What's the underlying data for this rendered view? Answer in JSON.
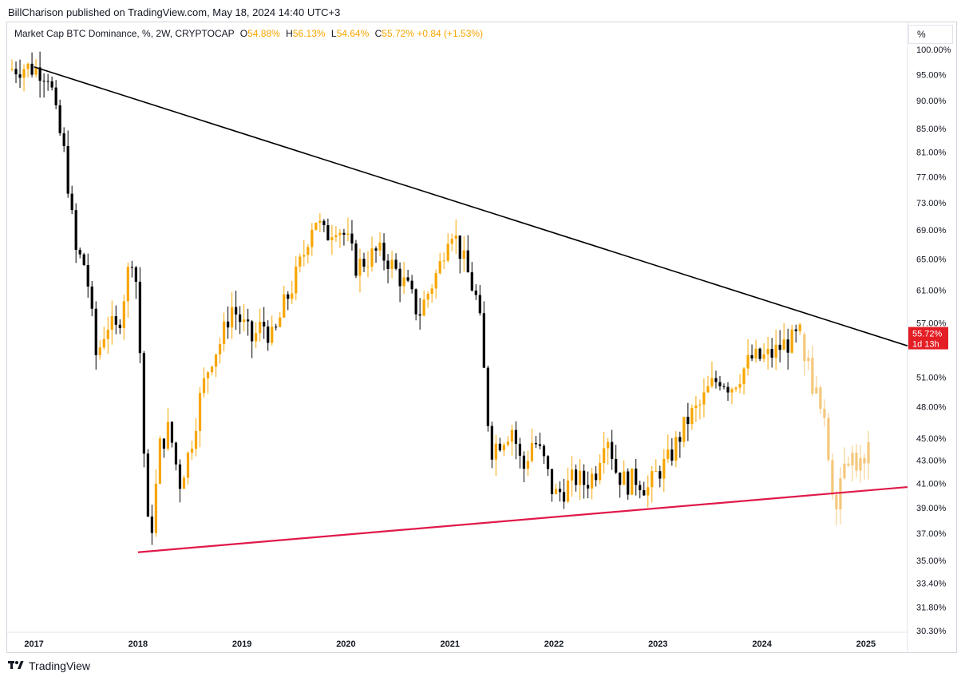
{
  "header": {
    "publisher": "BillCharison published on TradingView.com, May 18, 2024 14:40 UTC+3"
  },
  "legend": {
    "symbol": "Market Cap BTC Dominance, %, 2W, CRYPTOCAP",
    "o_label": "O",
    "o_value": "54.88%",
    "h_label": "H",
    "h_value": "56.13%",
    "l_label": "L",
    "l_value": "54.64%",
    "c_label": "C",
    "c_value": "55.72%",
    "change": "+0.84 (+1.53%)"
  },
  "scale_button": "%",
  "price_tag": {
    "price": "55.72%",
    "countdown": "1d 13h",
    "color": "#e31e24"
  },
  "colors": {
    "up": "#f7a600",
    "down": "#000000",
    "projection": "#f5c77a",
    "upper_trendline": "#000000",
    "lower_trendline": "#e0194a"
  },
  "footer": {
    "brand": "TradingView",
    "logo_icon": "tradingview-logo-icon"
  },
  "chart_data": {
    "type": "candlestick",
    "title": "Market Cap BTC Dominance, %, 2W, CRYPTOCAP",
    "scale": "log",
    "y_ticks": [
      "100.00%",
      "95.00%",
      "90.00%",
      "85.00%",
      "81.00%",
      "77.00%",
      "73.00%",
      "69.00%",
      "65.00%",
      "61.00%",
      "57.00%",
      "51.00%",
      "48.00%",
      "45.00%",
      "43.00%",
      "41.00%",
      "39.00%",
      "37.00%",
      "35.00%",
      "33.40%",
      "31.80%",
      "30.30%"
    ],
    "x_ticks": [
      "2017",
      "2018",
      "2019",
      "2020",
      "2021",
      "2022",
      "2023",
      "2024",
      "2025"
    ],
    "x_range": [
      2016.75,
      2025.4
    ],
    "y_range": [
      30.3,
      100
    ],
    "trendlines": [
      {
        "name": "upper",
        "from": [
          2017.0,
          96.5
        ],
        "to": [
          2025.4,
          54.4
        ]
      },
      {
        "name": "lower",
        "from": [
          2018.0,
          35.6
        ],
        "to": [
          2025.4,
          40.7
        ]
      }
    ],
    "close_path": [
      [
        2016.75,
        96
      ],
      [
        2016.9,
        96.5
      ],
      [
        2017.05,
        96
      ],
      [
        2017.15,
        95
      ],
      [
        2017.2,
        88
      ],
      [
        2017.25,
        84
      ],
      [
        2017.3,
        80
      ],
      [
        2017.4,
        66
      ],
      [
        2017.5,
        64
      ],
      [
        2017.6,
        53
      ],
      [
        2017.7,
        57
      ],
      [
        2017.8,
        56
      ],
      [
        2017.9,
        63
      ],
      [
        2017.95,
        66
      ],
      [
        2018.0,
        60
      ],
      [
        2018.05,
        45
      ],
      [
        2018.1,
        37
      ],
      [
        2018.15,
        38
      ],
      [
        2018.2,
        44
      ],
      [
        2018.3,
        46
      ],
      [
        2018.4,
        41
      ],
      [
        2018.5,
        44
      ],
      [
        2018.6,
        49
      ],
      [
        2018.7,
        53
      ],
      [
        2018.8,
        55
      ],
      [
        2018.9,
        59
      ],
      [
        2019.0,
        57
      ],
      [
        2019.1,
        55
      ],
      [
        2019.2,
        57
      ],
      [
        2019.3,
        55
      ],
      [
        2019.4,
        59
      ],
      [
        2019.5,
        62
      ],
      [
        2019.6,
        66
      ],
      [
        2019.65,
        69
      ],
      [
        2019.7,
        71
      ],
      [
        2019.8,
        68
      ],
      [
        2019.9,
        70
      ],
      [
        2020.0,
        68
      ],
      [
        2020.1,
        64
      ],
      [
        2020.2,
        65
      ],
      [
        2020.3,
        66
      ],
      [
        2020.4,
        65
      ],
      [
        2020.5,
        63
      ],
      [
        2020.6,
        61
      ],
      [
        2020.7,
        58
      ],
      [
        2020.8,
        61
      ],
      [
        2020.9,
        64
      ],
      [
        2021.0,
        70
      ],
      [
        2021.1,
        66
      ],
      [
        2021.2,
        62
      ],
      [
        2021.25,
        60
      ],
      [
        2021.3,
        56
      ],
      [
        2021.35,
        48
      ],
      [
        2021.4,
        44
      ],
      [
        2021.5,
        45
      ],
      [
        2021.6,
        46
      ],
      [
        2021.7,
        42
      ],
      [
        2021.8,
        45
      ],
      [
        2021.9,
        43
      ],
      [
        2022.0,
        40
      ],
      [
        2022.1,
        40.5
      ],
      [
        2022.2,
        41.5
      ],
      [
        2022.3,
        41
      ],
      [
        2022.4,
        42
      ],
      [
        2022.5,
        46
      ],
      [
        2022.55,
        44
      ],
      [
        2022.6,
        42
      ],
      [
        2022.7,
        41
      ],
      [
        2022.8,
        41.5
      ],
      [
        2022.9,
        40.5
      ],
      [
        2023.0,
        42
      ],
      [
        2023.1,
        43
      ],
      [
        2023.2,
        45
      ],
      [
        2023.3,
        47
      ],
      [
        2023.4,
        48
      ],
      [
        2023.5,
        50
      ],
      [
        2023.6,
        51
      ],
      [
        2023.7,
        50
      ],
      [
        2023.8,
        51.5
      ],
      [
        2023.9,
        53
      ],
      [
        2024.0,
        53
      ],
      [
        2024.1,
        53.5
      ],
      [
        2024.2,
        54.5
      ],
      [
        2024.3,
        55
      ],
      [
        2024.37,
        55.72
      ]
    ],
    "projection_path": [
      [
        2024.37,
        55.72
      ],
      [
        2024.45,
        52
      ],
      [
        2024.55,
        48
      ],
      [
        2024.62,
        45
      ],
      [
        2024.67,
        41
      ],
      [
        2024.72,
        40
      ],
      [
        2024.8,
        44
      ],
      [
        2024.9,
        43
      ],
      [
        2025.0,
        42
      ],
      [
        2025.05,
        45
      ]
    ],
    "last": {
      "open": 54.88,
      "high": 56.13,
      "low": 54.64,
      "close": 55.72,
      "change": 0.84,
      "change_pct": 1.53
    }
  }
}
